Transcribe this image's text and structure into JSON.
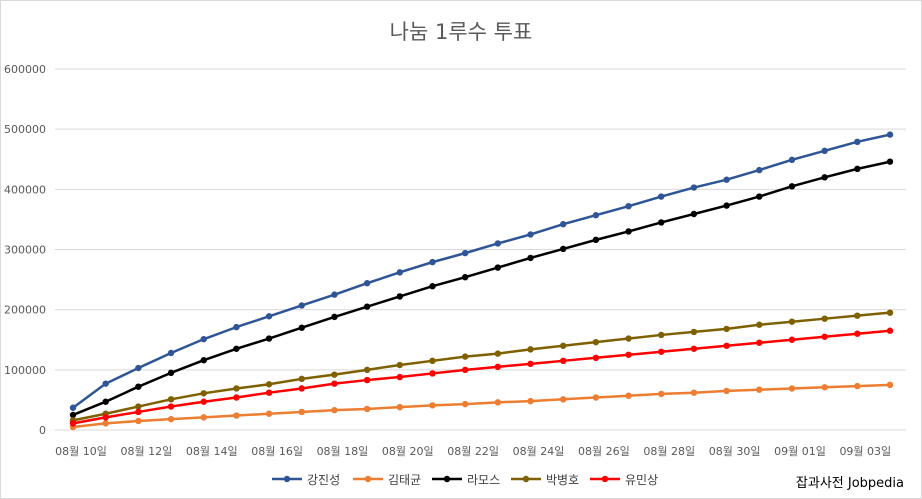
{
  "chart_data": {
    "type": "line",
    "title": "나눔 1루수 투표",
    "xlabel": "",
    "ylabel": "",
    "ylim": [
      0,
      600000
    ],
    "yticks": [
      "0",
      "100000",
      "200000",
      "300000",
      "400000",
      "500000",
      "600000"
    ],
    "x": [
      "08월 10일",
      "08월 11일",
      "08월 12일",
      "08월 13일",
      "08월 14일",
      "08월 15일",
      "08월 16일",
      "08월 17일",
      "08월 18일",
      "08월 19일",
      "08월 20일",
      "08월 21일",
      "08월 22일",
      "08월 23일",
      "08월 24일",
      "08월 25일",
      "08월 26일",
      "08월 27일",
      "08월 28일",
      "08월 29일",
      "08월 30일",
      "08월 31일",
      "09월 01일",
      "09월 02일",
      "09월 03일",
      "09월 04일"
    ],
    "xtick_labels": [
      "08월 10일",
      "",
      "08월 12일",
      "",
      "08월 14일",
      "",
      "08월 16일",
      "",
      "08월 18일",
      "",
      "08월 20일",
      "",
      "08월 22일",
      "",
      "08월 24일",
      "",
      "08월 26일",
      "",
      "08월 28일",
      "",
      "08월 30일",
      "",
      "09월 01일",
      "",
      "09월 03일",
      ""
    ],
    "grid": true,
    "legend_position": "bottom",
    "series": [
      {
        "name": "강진성",
        "color": "#2f5597",
        "values": [
          37000,
          77000,
          103000,
          128000,
          151000,
          171000,
          189000,
          207000,
          225000,
          244000,
          262000,
          279000,
          294000,
          310000,
          325000,
          342000,
          357000,
          372000,
          388000,
          403000,
          416000,
          432000,
          449000,
          464000,
          479000,
          491000
        ]
      },
      {
        "name": "김태균",
        "color": "#ed7d31",
        "values": [
          5000,
          11000,
          15000,
          18000,
          21000,
          24000,
          27000,
          30000,
          33000,
          35000,
          38000,
          41000,
          43000,
          46000,
          48000,
          51000,
          54000,
          57000,
          60000,
          62000,
          65000,
          67000,
          69000,
          71000,
          73000,
          75000
        ]
      },
      {
        "name": "라모스",
        "color": "#000000",
        "values": [
          25000,
          47000,
          72000,
          95000,
          116000,
          135000,
          152000,
          170000,
          188000,
          205000,
          222000,
          239000,
          254000,
          270000,
          286000,
          301000,
          316000,
          330000,
          345000,
          359000,
          373000,
          388000,
          405000,
          420000,
          434000,
          446000
        ]
      },
      {
        "name": "박병호",
        "color": "#7f6000",
        "values": [
          16000,
          27000,
          39000,
          51000,
          61000,
          69000,
          76000,
          85000,
          92000,
          100000,
          108000,
          115000,
          122000,
          127000,
          134000,
          140000,
          146000,
          152000,
          158000,
          163000,
          168000,
          175000,
          180000,
          185000,
          190000,
          195000
        ]
      },
      {
        "name": "유민상",
        "color": "#ff0000",
        "values": [
          11000,
          21000,
          30000,
          39000,
          47000,
          54000,
          62000,
          69000,
          77000,
          83000,
          88000,
          94000,
          100000,
          105000,
          110000,
          115000,
          120000,
          125000,
          130000,
          135000,
          140000,
          145000,
          150000,
          155000,
          160000,
          165000
        ]
      }
    ]
  },
  "credit": "잡과사전 Jobpedia",
  "colors": {
    "grid": "#d9d9d9",
    "tick_label": "#595959"
  }
}
